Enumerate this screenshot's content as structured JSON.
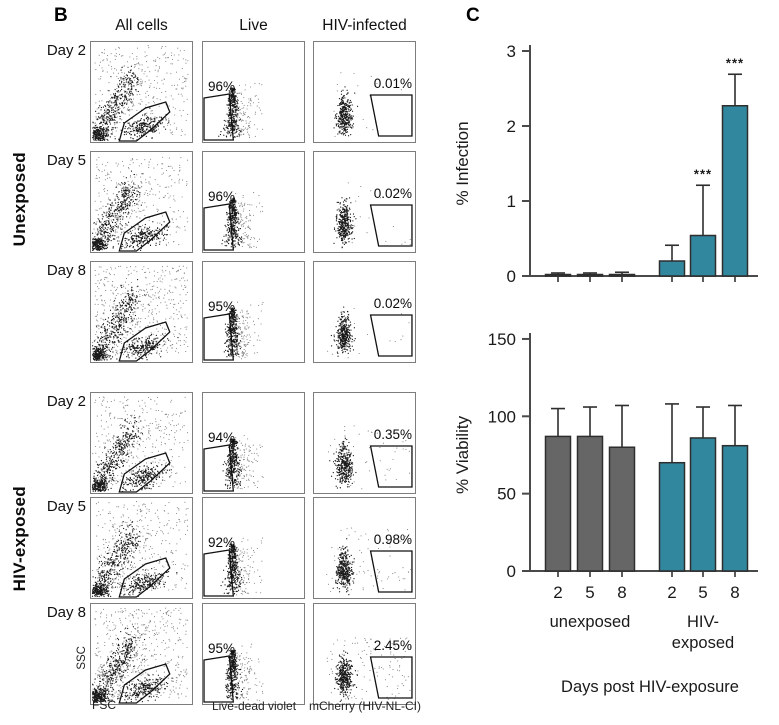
{
  "figure": {
    "panel_b": {
      "label": "B",
      "col_headers": [
        "All cells",
        "Live",
        "HIV-infected"
      ],
      "group_labels": [
        "Unexposed",
        "HIV-exposed"
      ],
      "rows": [
        {
          "day": "Day 2",
          "group": "Unexposed",
          "live_pct": "96%",
          "infected_pct": "0.01%"
        },
        {
          "day": "Day 5",
          "group": "Unexposed",
          "live_pct": "96%",
          "infected_pct": "0.02%"
        },
        {
          "day": "Day 8",
          "group": "Unexposed",
          "live_pct": "95%",
          "infected_pct": "0.02%"
        },
        {
          "day": "Day 2",
          "group": "HIV-exposed",
          "live_pct": "94%",
          "infected_pct": "0.35%"
        },
        {
          "day": "Day 5",
          "group": "HIV-exposed",
          "live_pct": "92%",
          "infected_pct": "0.98%"
        },
        {
          "day": "Day 8",
          "group": "HIV-exposed",
          "live_pct": "95%",
          "infected_pct": "2.45%"
        }
      ],
      "axis_labels": {
        "scatter_y": "SSC",
        "scatter_x": "FSC",
        "live_x": "Live-dead violet",
        "infected_x": "mCherry (HIV-NL-CI)"
      }
    },
    "panel_c": {
      "label": "C",
      "group_labels": [
        "unexposed",
        "HIV-\nexposed"
      ],
      "xlabel": "Days post HIV-exposure"
    }
  },
  "colors": {
    "teal": "#31879E",
    "gray": "#666666",
    "axis": "#4a4a4a",
    "plot_border": "#7d7d7d"
  },
  "chart_data": [
    {
      "type": "bar",
      "title": "",
      "ylabel": "% Infection",
      "ylim": [
        0,
        3
      ],
      "yticks": [
        0,
        1,
        2,
        3
      ],
      "categories": [
        "2",
        "5",
        "8",
        "2",
        "5",
        "8"
      ],
      "group_of_bar": [
        "unexposed",
        "unexposed",
        "unexposed",
        "HIV-exposed",
        "HIV-exposed",
        "HIV-exposed"
      ],
      "values": [
        0.02,
        0.02,
        0.02,
        0.2,
        0.54,
        2.27
      ],
      "errors_up": [
        0.02,
        0.02,
        0.03,
        0.21,
        0.67,
        0.42
      ],
      "bar_colors": [
        "#666666",
        "#666666",
        "#666666",
        "#31879E",
        "#31879E",
        "#31879E"
      ],
      "significance": [
        "",
        "",
        "",
        "",
        "***",
        "***"
      ],
      "show_x_tick_labels": false,
      "grid": false,
      "legend": "none"
    },
    {
      "type": "bar",
      "title": "",
      "ylabel": "% Viability",
      "ylim": [
        0,
        150
      ],
      "yticks": [
        0,
        50,
        100,
        150
      ],
      "categories": [
        "2",
        "5",
        "8",
        "2",
        "5",
        "8"
      ],
      "group_of_bar": [
        "unexposed",
        "unexposed",
        "unexposed",
        "HIV-exposed",
        "HIV-exposed",
        "HIV-exposed"
      ],
      "values": [
        87,
        87,
        80,
        70,
        86,
        81
      ],
      "errors_up": [
        18,
        19,
        27,
        38,
        20,
        26
      ],
      "bar_colors": [
        "#666666",
        "#666666",
        "#666666",
        "#31879E",
        "#31879E",
        "#31879E"
      ],
      "significance": [
        "",
        "",
        "",
        "",
        "",
        ""
      ],
      "show_x_tick_labels": true,
      "grid": false,
      "legend": "none"
    }
  ]
}
